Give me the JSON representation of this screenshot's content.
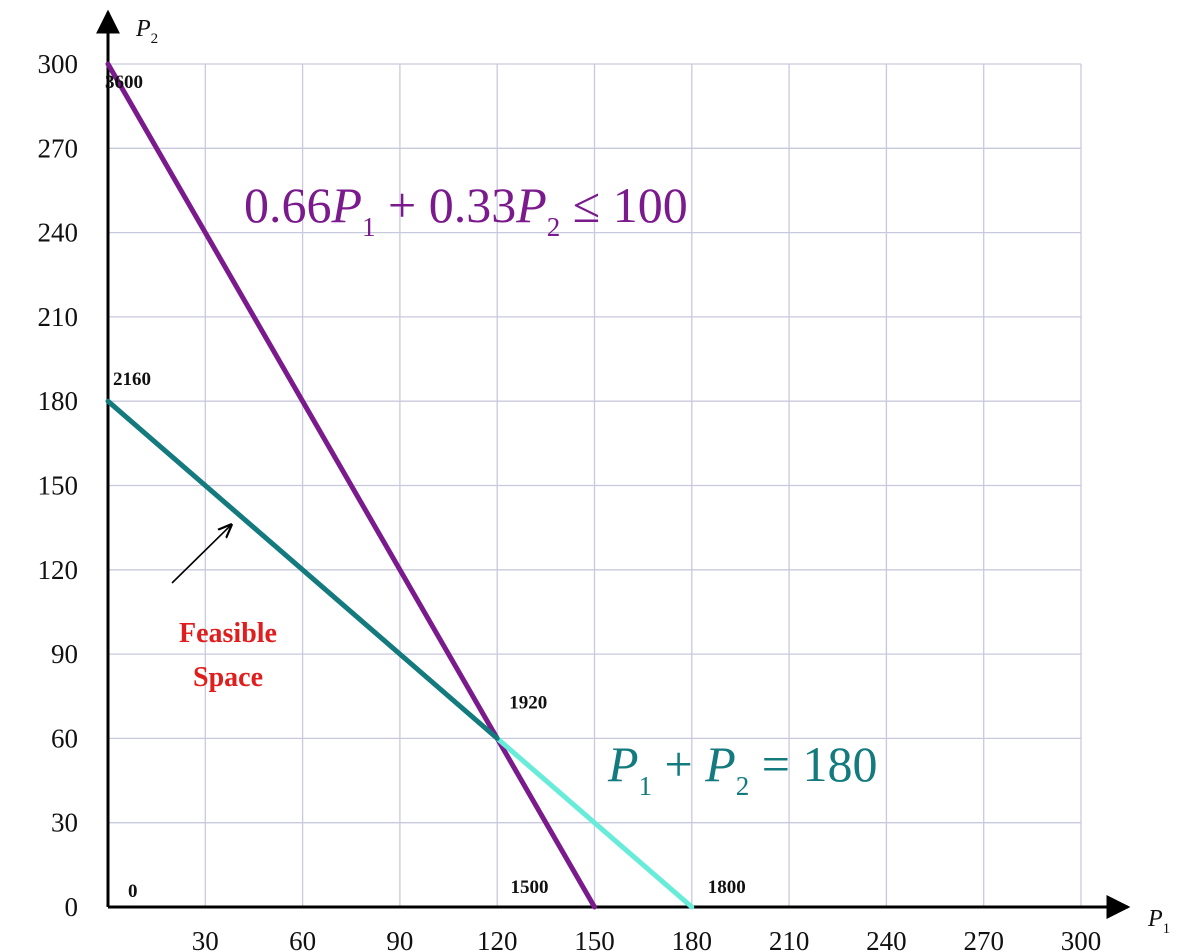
{
  "chart_data": {
    "type": "line",
    "title": "",
    "xlabel": {
      "var": "P",
      "sub": "1"
    },
    "ylabel": {
      "var": "P",
      "sub": "2"
    },
    "xlim": [
      0,
      300
    ],
    "ylim": [
      0,
      300
    ],
    "x_ticks": [
      30,
      60,
      90,
      120,
      150,
      180,
      210,
      240,
      270,
      300
    ],
    "y_ticks": [
      0,
      30,
      60,
      90,
      120,
      150,
      180,
      210,
      240,
      270,
      300
    ],
    "grid": true,
    "series": [
      {
        "key": "constraint1",
        "color": "#7a1a8c",
        "points": [
          [
            0,
            300
          ],
          [
            150,
            0
          ]
        ],
        "equation": {
          "coef1": "0.66",
          "var1": "P",
          "sub1": "1",
          "op": "+",
          "coef2": "0.33",
          "var2": "P",
          "sub2": "2",
          "rel": "≤",
          "rhs": "100"
        }
      },
      {
        "key": "constraint2",
        "color": "#137a7e",
        "color_outside": "#67ecd9",
        "points": [
          [
            0,
            180
          ],
          [
            180,
            0
          ]
        ],
        "segment_split_x": 120,
        "equation": {
          "var1": "P",
          "sub1": "1",
          "op": "+",
          "var2": "P",
          "sub2": "2",
          "rel": "=",
          "rhs": "180"
        }
      }
    ],
    "point_labels": [
      {
        "x": 0,
        "y": 300,
        "text": "3600"
      },
      {
        "x": 0,
        "y": 180,
        "text": "2160"
      },
      {
        "x": 120,
        "y": 60,
        "text": "1920"
      },
      {
        "x": 150,
        "y": 0,
        "text": "1500"
      },
      {
        "x": 180,
        "y": 0,
        "text": "1800"
      },
      {
        "x": 0,
        "y": 0,
        "text": "0"
      }
    ],
    "annotation": {
      "lines": [
        "Feasible",
        "Space"
      ],
      "color": "#e01e1e",
      "arrow_target": [
        38,
        136
      ]
    }
  }
}
